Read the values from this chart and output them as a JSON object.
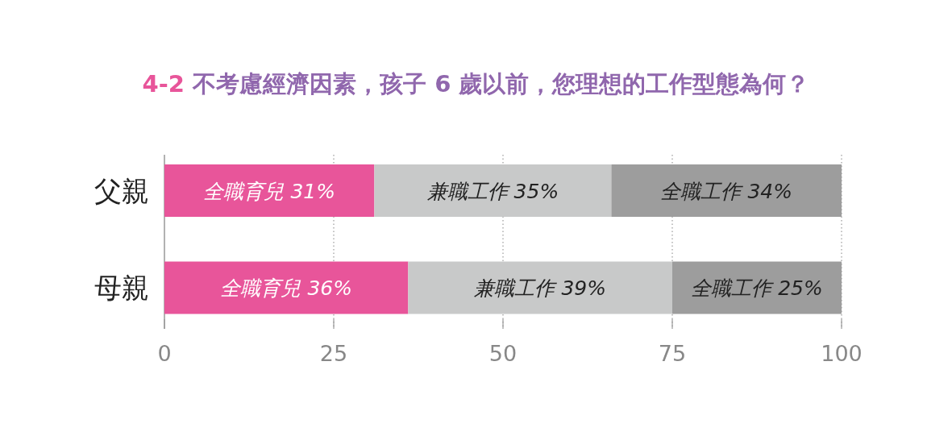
{
  "chart_data": {
    "type": "bar",
    "orientation": "horizontal",
    "stacked": true,
    "title": "4-2 不考慮經濟因素，孩子 6 歲以前，您理想的工作型態為何？",
    "categories": [
      "父親",
      "母親"
    ],
    "series": [
      {
        "name": "全職育兒",
        "color": "#e8559a",
        "values": [
          31,
          36
        ],
        "value_labels": [
          "31%",
          "36%"
        ]
      },
      {
        "name": "兼職工作",
        "color": "#c8c9c9",
        "values": [
          35,
          39
        ],
        "value_labels": [
          "35%",
          "39%"
        ]
      },
      {
        "name": "全職工作",
        "color": "#9d9d9d",
        "values": [
          34,
          25
        ],
        "value_labels": [
          "34%",
          "25%"
        ]
      }
    ],
    "xlim": [
      0,
      100
    ],
    "xticks": [
      0,
      25,
      50,
      75,
      100
    ],
    "grid": "x"
  }
}
